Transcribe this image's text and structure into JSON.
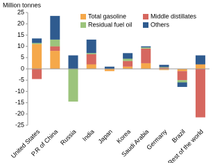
{
  "chart_data": {
    "type": "stacked_bar",
    "y_label": "Million tonnes",
    "categories": [
      "United States",
      "P.R of China",
      "Russia",
      "India",
      "Japan",
      "Korea",
      "Saudi Arabia",
      "Germany",
      "Brazil",
      "Rest of the world"
    ],
    "series": [
      {
        "name": "Total gasoline",
        "color": "#f5a84a",
        "values": [
          11,
          8,
          0,
          2,
          -1,
          1,
          2.5,
          -0.5,
          -1,
          2
        ]
      },
      {
        "name": "Middle distillates",
        "color": "#d6675f",
        "values": [
          -4.5,
          2,
          0,
          4.5,
          0,
          2.5,
          6.5,
          0.5,
          -4,
          -21.5
        ]
      },
      {
        "name": "Residual fuel oil",
        "color": "#9cc47c",
        "values": [
          0.5,
          3,
          -14.5,
          0.5,
          0,
          1,
          0.5,
          0.3,
          -1,
          0
        ]
      },
      {
        "name": "Others",
        "color": "#2f5b8f",
        "values": [
          2,
          10.5,
          6,
          6,
          1,
          2.5,
          0.5,
          1,
          -2,
          4
        ]
      }
    ],
    "ylim": [
      -25,
      25
    ],
    "yticks": [
      -25,
      -20,
      -15,
      -10,
      -5,
      0,
      5,
      10,
      15,
      20,
      25
    ]
  }
}
